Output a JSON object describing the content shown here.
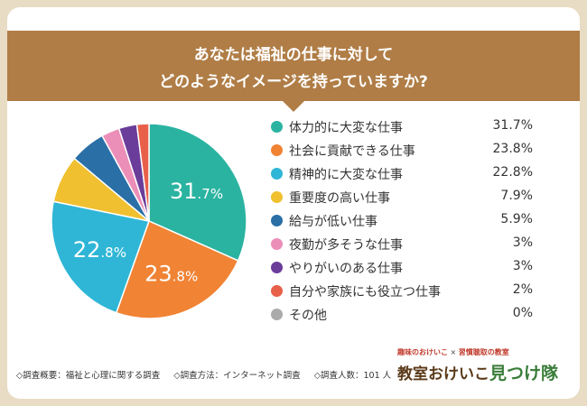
{
  "title": {
    "line1": "あなたは福祉の仕事に対して",
    "line2": "どのようなイメージを持っていますか?"
  },
  "chart_data": {
    "type": "pie",
    "title": "あなたは福祉の仕事に対して どのようなイメージを持っていますか?",
    "categories": [
      "体力的に大変な仕事",
      "社会に貢献できる仕事",
      "精神的に大変な仕事",
      "重要度の高い仕事",
      "給与が低い仕事",
      "夜勤が多そうな仕事",
      "やりがいのある仕事",
      "自分や家族にも役立つ仕事",
      "その他"
    ],
    "values": [
      31.7,
      23.8,
      22.8,
      7.9,
      5.9,
      3,
      3,
      2,
      0
    ],
    "value_labels": [
      "31.7%",
      "23.8%",
      "22.8%",
      "7.9%",
      "5.9%",
      "3%",
      "3%",
      "2%",
      "0%"
    ],
    "slice_labels": [
      {
        "int": "31",
        "dec": ".7%"
      },
      {
        "int": "23",
        "dec": ".8%"
      },
      {
        "int": "22",
        "dec": ".8%"
      }
    ],
    "colors": [
      "#2bb3a1",
      "#f08334",
      "#2fb6d6",
      "#f0c030",
      "#2a6fa6",
      "#ec8fb8",
      "#6a3d9a",
      "#e8604a",
      "#aaaaaa"
    ],
    "legend_position": "right"
  },
  "footer": {
    "overview": "◇調査概要：福祉と心理に関する調査",
    "method": "◇調査方法：インターネット調査",
    "count": "◇調査人数：101 人"
  },
  "brand": {
    "top_left": "趣味のおけいこ",
    "cross": "×",
    "top_right": "習慣聴取の教室",
    "main": "教室おけいこ",
    "main_accent": "見つけ隊"
  }
}
